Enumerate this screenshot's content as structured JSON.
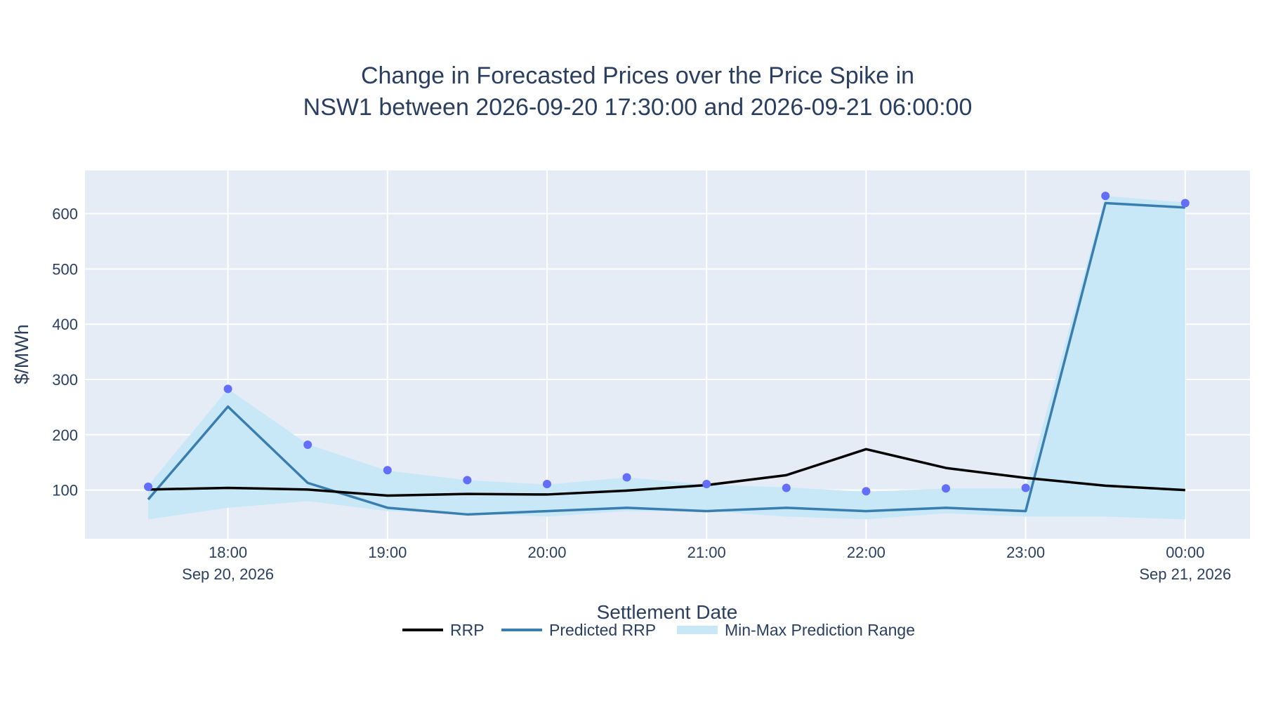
{
  "chart_data": {
    "type": "line",
    "title_lines": [
      "Change in Forecasted Prices over the Price Spike in",
      "NSW1 between 2026-09-20 17:30:00 and 2026-09-21 06:00:00"
    ],
    "xlabel": "Settlement Date",
    "ylabel": "$/MWh",
    "x": [
      "17:30",
      "18:00",
      "18:30",
      "19:00",
      "19:30",
      "20:00",
      "20:30",
      "21:00",
      "21:30",
      "22:00",
      "22:30",
      "23:00",
      "23:30",
      "00:00"
    ],
    "x_ticks": [
      {
        "label": "18:00",
        "sublabel": "Sep 20, 2026"
      },
      {
        "label": "19:00",
        "sublabel": ""
      },
      {
        "label": "20:00",
        "sublabel": ""
      },
      {
        "label": "21:00",
        "sublabel": ""
      },
      {
        "label": "22:00",
        "sublabel": ""
      },
      {
        "label": "23:00",
        "sublabel": ""
      },
      {
        "label": "00:00",
        "sublabel": "Sep 21, 2026"
      }
    ],
    "ylim": [
      12,
      678
    ],
    "y_ticks": [
      100,
      200,
      300,
      400,
      500,
      600
    ],
    "grid": true,
    "legend_position": "bottom-center",
    "series": [
      {
        "name": "RRP",
        "kind": "line",
        "color": "#000000",
        "values": [
          101,
          104,
          101,
          90,
          93,
          92,
          99,
          109,
          127,
          174,
          140,
          122,
          108,
          100
        ]
      },
      {
        "name": "Predicted RRP",
        "kind": "line",
        "color": "#3a7eb0",
        "values": [
          83,
          251,
          113,
          68,
          56,
          62,
          68,
          62,
          68,
          62,
          68,
          62,
          619,
          611
        ]
      },
      {
        "name": "Min-Max Prediction Range",
        "kind": "band",
        "color": "#c8e8f8",
        "lower": [
          47,
          68,
          80,
          62,
          58,
          52,
          62,
          62,
          52,
          47,
          58,
          52,
          52,
          47
        ],
        "upper": [
          108,
          283,
          183,
          135,
          118,
          110,
          123,
          110,
          105,
          97,
          103,
          103,
          632,
          620
        ]
      },
      {
        "kind": "markers",
        "color": "#636efa",
        "values": [
          106,
          283,
          182,
          136,
          118,
          111,
          123,
          111,
          104,
          98,
          103,
          104,
          632,
          619
        ]
      }
    ]
  }
}
